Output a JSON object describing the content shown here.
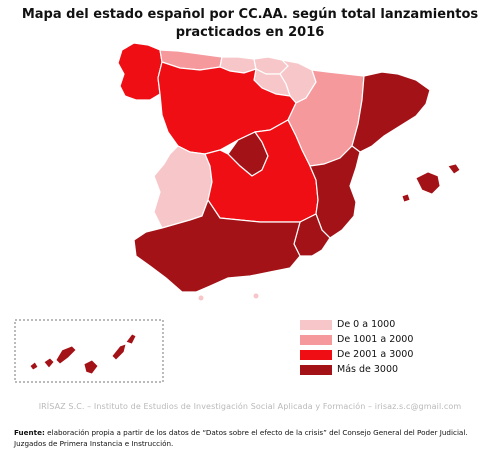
{
  "title_line1": "Mapa del estado español por CC.AA. según total lanzamientos",
  "title_line2": "practicados en 2016",
  "colors": {
    "level1": "#f7c6c9",
    "level2": "#f5999d",
    "level3": "#ef0e14",
    "level4": "#a31217",
    "inset_border": "#777777"
  },
  "legend": [
    {
      "label": "De 0 a 1000",
      "color": "#f7c6c9"
    },
    {
      "label": "De 1001 a 2000",
      "color": "#f5999d"
    },
    {
      "label": "De 2001 a 3000",
      "color": "#ef0e14"
    },
    {
      "label": "Más de 3000",
      "color": "#a31217"
    }
  ],
  "credit": "IRÍSAZ S.C.  –  Instituto de Estudios de Investigación Social Aplicada y Formación – irisaz.s.c@gmail.com",
  "source": {
    "label": "Fuente:",
    "text": " elaboración propia a partir de los datos de “Datos sobre el efecto de la crisis” del Consejo General del Poder Judicial. Juzgados de Primera Instancia e Instrucción."
  }
}
